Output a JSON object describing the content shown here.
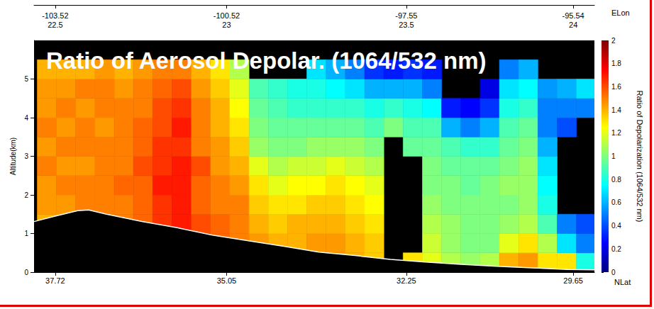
{
  "chart_data": {
    "type": "heatmap",
    "title": "Ratio of Aerosol Depolar. (1064/532 nm)",
    "xlabel": "NLat",
    "ylabel": "Altitude(km)",
    "x2label": "ELon",
    "xlim": [
      29.32,
      38.05
    ],
    "xticks": [
      37.72,
      35.05,
      32.25,
      29.65
    ],
    "x2ticks": [
      {
        "value": 37.72,
        "label": "-103.52"
      },
      {
        "value": 35.05,
        "label": "-100.52"
      },
      {
        "value": 32.25,
        "label": "-97.55"
      },
      {
        "value": 29.65,
        "label": "-95.54"
      }
    ],
    "time_ticks": [
      {
        "value": 37.72,
        "label": "22.5"
      },
      {
        "value": 35.05,
        "label": "23"
      },
      {
        "value": 32.25,
        "label": "23.5"
      },
      {
        "value": 29.65,
        "label": "24"
      }
    ],
    "ylim": [
      0,
      6
    ],
    "yticks": [
      0,
      1,
      2,
      3,
      4,
      5
    ],
    "x_edges": [
      38.0,
      37.7,
      37.4,
      37.1,
      36.8,
      36.5,
      36.2,
      35.9,
      35.6,
      35.3,
      35.0,
      34.7,
      34.4,
      34.1,
      33.8,
      33.5,
      33.2,
      32.9,
      32.6,
      32.3,
      32.0,
      31.7,
      31.4,
      31.1,
      30.8,
      30.5,
      30.2,
      29.9,
      29.6,
      29.3
    ],
    "y_edges": [
      0,
      0.5,
      1,
      1.5,
      2,
      2.5,
      3,
      3.5,
      4,
      4.5,
      5,
      5.5,
      6
    ],
    "cells": [
      [
        null,
        null,
        1.4,
        1.45,
        1.45,
        1.5,
        1.45,
        1.5,
        1.45,
        1.45,
        1.4,
        null
      ],
      [
        null,
        null,
        1.4,
        1.45,
        1.5,
        1.45,
        1.5,
        1.45,
        1.5,
        1.45,
        1.4,
        null
      ],
      [
        null,
        null,
        1.45,
        1.5,
        1.5,
        1.45,
        1.5,
        1.5,
        1.45,
        1.5,
        1.4,
        null
      ],
      [
        null,
        null,
        1.45,
        1.5,
        1.5,
        1.5,
        1.5,
        1.45,
        1.5,
        1.5,
        1.45,
        null
      ],
      [
        null,
        null,
        1.5,
        1.5,
        1.55,
        1.5,
        1.5,
        1.5,
        1.5,
        1.45,
        1.4,
        null
      ],
      [
        null,
        null,
        1.55,
        1.55,
        1.55,
        1.6,
        1.55,
        1.55,
        1.5,
        1.5,
        1.45,
        null
      ],
      [
        null,
        null,
        1.65,
        1.65,
        1.7,
        1.65,
        1.65,
        1.6,
        1.6,
        1.55,
        1.5,
        null
      ],
      [
        null,
        null,
        1.7,
        1.7,
        1.7,
        1.7,
        1.65,
        1.7,
        1.65,
        1.6,
        1.5,
        null
      ],
      [
        null,
        1.6,
        1.6,
        1.55,
        1.55,
        1.6,
        1.5,
        1.5,
        1.5,
        1.45,
        1.4,
        null
      ],
      [
        null,
        1.55,
        1.55,
        1.5,
        1.5,
        1.45,
        1.45,
        1.4,
        1.4,
        1.35,
        1.3,
        null
      ],
      [
        null,
        1.5,
        1.5,
        1.5,
        1.45,
        1.4,
        1.35,
        1.3,
        1.25,
        1.2,
        1.1,
        null
      ],
      [
        null,
        1.45,
        1.4,
        1.35,
        1.3,
        1.2,
        1.05,
        1.0,
        0.95,
        0.9,
        null,
        null
      ],
      [
        null,
        1.4,
        1.35,
        1.3,
        1.2,
        1.1,
        1.0,
        0.95,
        0.9,
        0.85,
        null,
        null
      ],
      [
        null,
        1.4,
        1.4,
        1.3,
        1.25,
        1.15,
        1.0,
        0.95,
        0.85,
        0.8,
        null,
        null
      ],
      [
        null,
        1.45,
        1.4,
        1.35,
        1.25,
        1.15,
        1.05,
        0.95,
        0.85,
        0.8,
        0.7,
        null
      ],
      [
        1.4,
        1.45,
        1.4,
        1.35,
        1.3,
        1.2,
        1.05,
        0.95,
        0.85,
        0.75,
        0.6,
        null
      ],
      [
        1.4,
        1.4,
        1.35,
        1.3,
        1.25,
        1.15,
        1.05,
        0.95,
        0.85,
        0.7,
        0.5,
        null
      ],
      [
        1.35,
        1.35,
        1.3,
        1.25,
        1.2,
        1.1,
        1.0,
        0.9,
        0.8,
        0.6,
        0.35,
        null
      ],
      [
        null,
        null,
        null,
        null,
        null,
        null,
        null,
        1.0,
        0.85,
        0.6,
        0.3,
        null
      ],
      [
        1.3,
        null,
        null,
        null,
        null,
        null,
        0.95,
        0.9,
        0.8,
        0.6,
        0.35,
        null
      ],
      [
        1.2,
        1.15,
        1.1,
        1.05,
        1.0,
        1.0,
        0.95,
        0.9,
        0.75,
        0.5,
        0.3,
        null
      ],
      [
        1.1,
        1.05,
        1.05,
        1.0,
        1.0,
        0.95,
        0.9,
        0.6,
        0.3,
        null,
        null,
        null
      ],
      [
        1.05,
        1.0,
        1.0,
        1.0,
        0.95,
        0.95,
        0.85,
        0.5,
        0.25,
        null,
        null,
        null
      ],
      [
        1.1,
        1.0,
        1.0,
        1.0,
        1.0,
        0.95,
        0.85,
        0.6,
        0.35,
        0.2,
        null,
        null
      ],
      [
        1.4,
        1.2,
        1.05,
        1.0,
        1.05,
        1.0,
        0.95,
        0.9,
        0.8,
        0.7,
        0.5,
        null
      ],
      [
        1.45,
        1.3,
        1.1,
        1.05,
        1.05,
        1.05,
        1.0,
        0.95,
        0.85,
        0.75,
        0.6,
        null
      ],
      [
        1.3,
        1.1,
        0.9,
        0.8,
        0.75,
        0.7,
        0.6,
        0.5,
        0.5,
        0.55,
        null,
        null
      ],
      [
        1.3,
        0.7,
        0.5,
        null,
        null,
        null,
        null,
        0.4,
        0.5,
        0.6,
        null,
        null
      ],
      [
        0.8,
        0.5,
        0.4,
        null,
        null,
        null,
        null,
        null,
        0.5,
        0.7,
        null,
        null
      ]
    ],
    "colorbar": {
      "label": "Ratio of Depolarization (1064/532 nm)",
      "range": [
        0,
        2
      ],
      "ticks": [
        0,
        0.2,
        0.4,
        0.6,
        0.8,
        1,
        1.2,
        1.4,
        1.6,
        1.8,
        2
      ]
    },
    "terrain": {
      "color": "#ffffff",
      "x": [
        38.05,
        37.7,
        37.37,
        37.2,
        36.92,
        36.37,
        35.82,
        35.27,
        34.71,
        34.16,
        33.61,
        33.05,
        32.5,
        31.95,
        31.4,
        30.84,
        30.29,
        29.74,
        29.32
      ],
      "y": [
        1.31,
        1.46,
        1.59,
        1.61,
        1.5,
        1.31,
        1.15,
        0.96,
        0.81,
        0.67,
        0.52,
        0.43,
        0.33,
        0.26,
        0.2,
        0.15,
        0.11,
        0.07,
        0.06
      ]
    }
  }
}
